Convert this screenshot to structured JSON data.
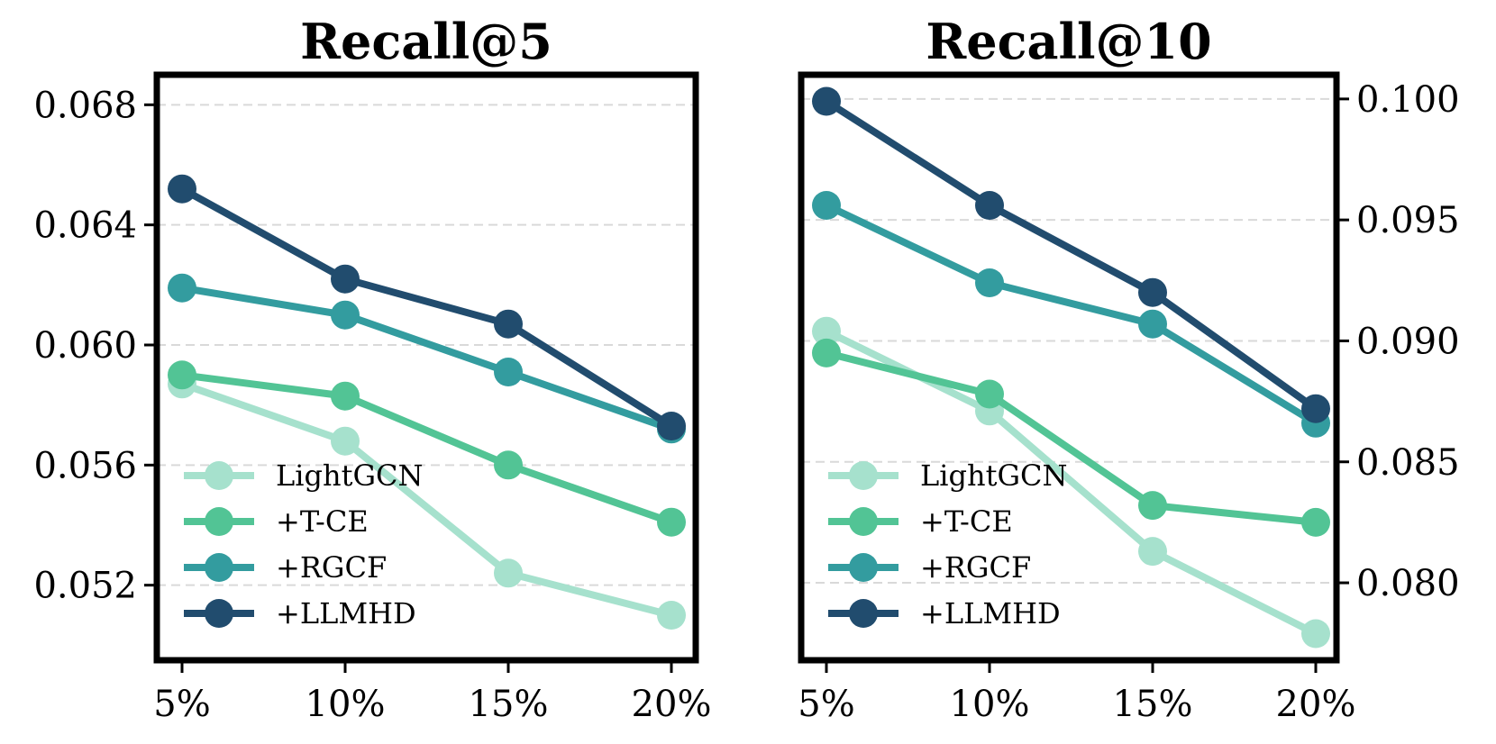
{
  "chart_data": [
    {
      "type": "line",
      "title": "Recall@5",
      "categories": [
        "5%",
        "10%",
        "15%",
        "20%"
      ],
      "y_ticks": [
        "0.052",
        "0.056",
        "0.060",
        "0.064",
        "0.068"
      ],
      "ylim": [
        0.0495,
        0.069
      ],
      "y_axis_side": "left",
      "grid": true,
      "legend_position": "bottom-left",
      "series": [
        {
          "name": "LightGCN",
          "color": "#a6e1cd",
          "values": [
            0.0587,
            0.0568,
            0.0524,
            0.051
          ]
        },
        {
          "name": "+T-CE",
          "color": "#52c495",
          "values": [
            0.059,
            0.0583,
            0.056,
            0.0541
          ]
        },
        {
          "name": "+RGCF",
          "color": "#339c9f",
          "values": [
            0.0619,
            0.061,
            0.0591,
            0.0572
          ]
        },
        {
          "name": "+LLMHD",
          "color": "#214c6e",
          "values": [
            0.0652,
            0.0622,
            0.0607,
            0.0573
          ]
        }
      ]
    },
    {
      "type": "line",
      "title": "Recall@10",
      "categories": [
        "5%",
        "10%",
        "15%",
        "20%"
      ],
      "y_ticks": [
        "0.080",
        "0.085",
        "0.090",
        "0.095",
        "0.100"
      ],
      "ylim": [
        0.0768,
        0.101
      ],
      "y_axis_side": "right",
      "grid": true,
      "legend_position": "bottom-left",
      "series": [
        {
          "name": "LightGCN",
          "color": "#a6e1cd",
          "values": [
            0.0904,
            0.0871,
            0.0813,
            0.0779
          ]
        },
        {
          "name": "+T-CE",
          "color": "#52c495",
          "values": [
            0.0895,
            0.0878,
            0.0832,
            0.0825
          ]
        },
        {
          "name": "+RGCF",
          "color": "#339c9f",
          "values": [
            0.0956,
            0.0924,
            0.0907,
            0.0866
          ]
        },
        {
          "name": "+LLMHD",
          "color": "#214c6e",
          "values": [
            0.0999,
            0.0956,
            0.092,
            0.0872
          ]
        }
      ]
    }
  ]
}
